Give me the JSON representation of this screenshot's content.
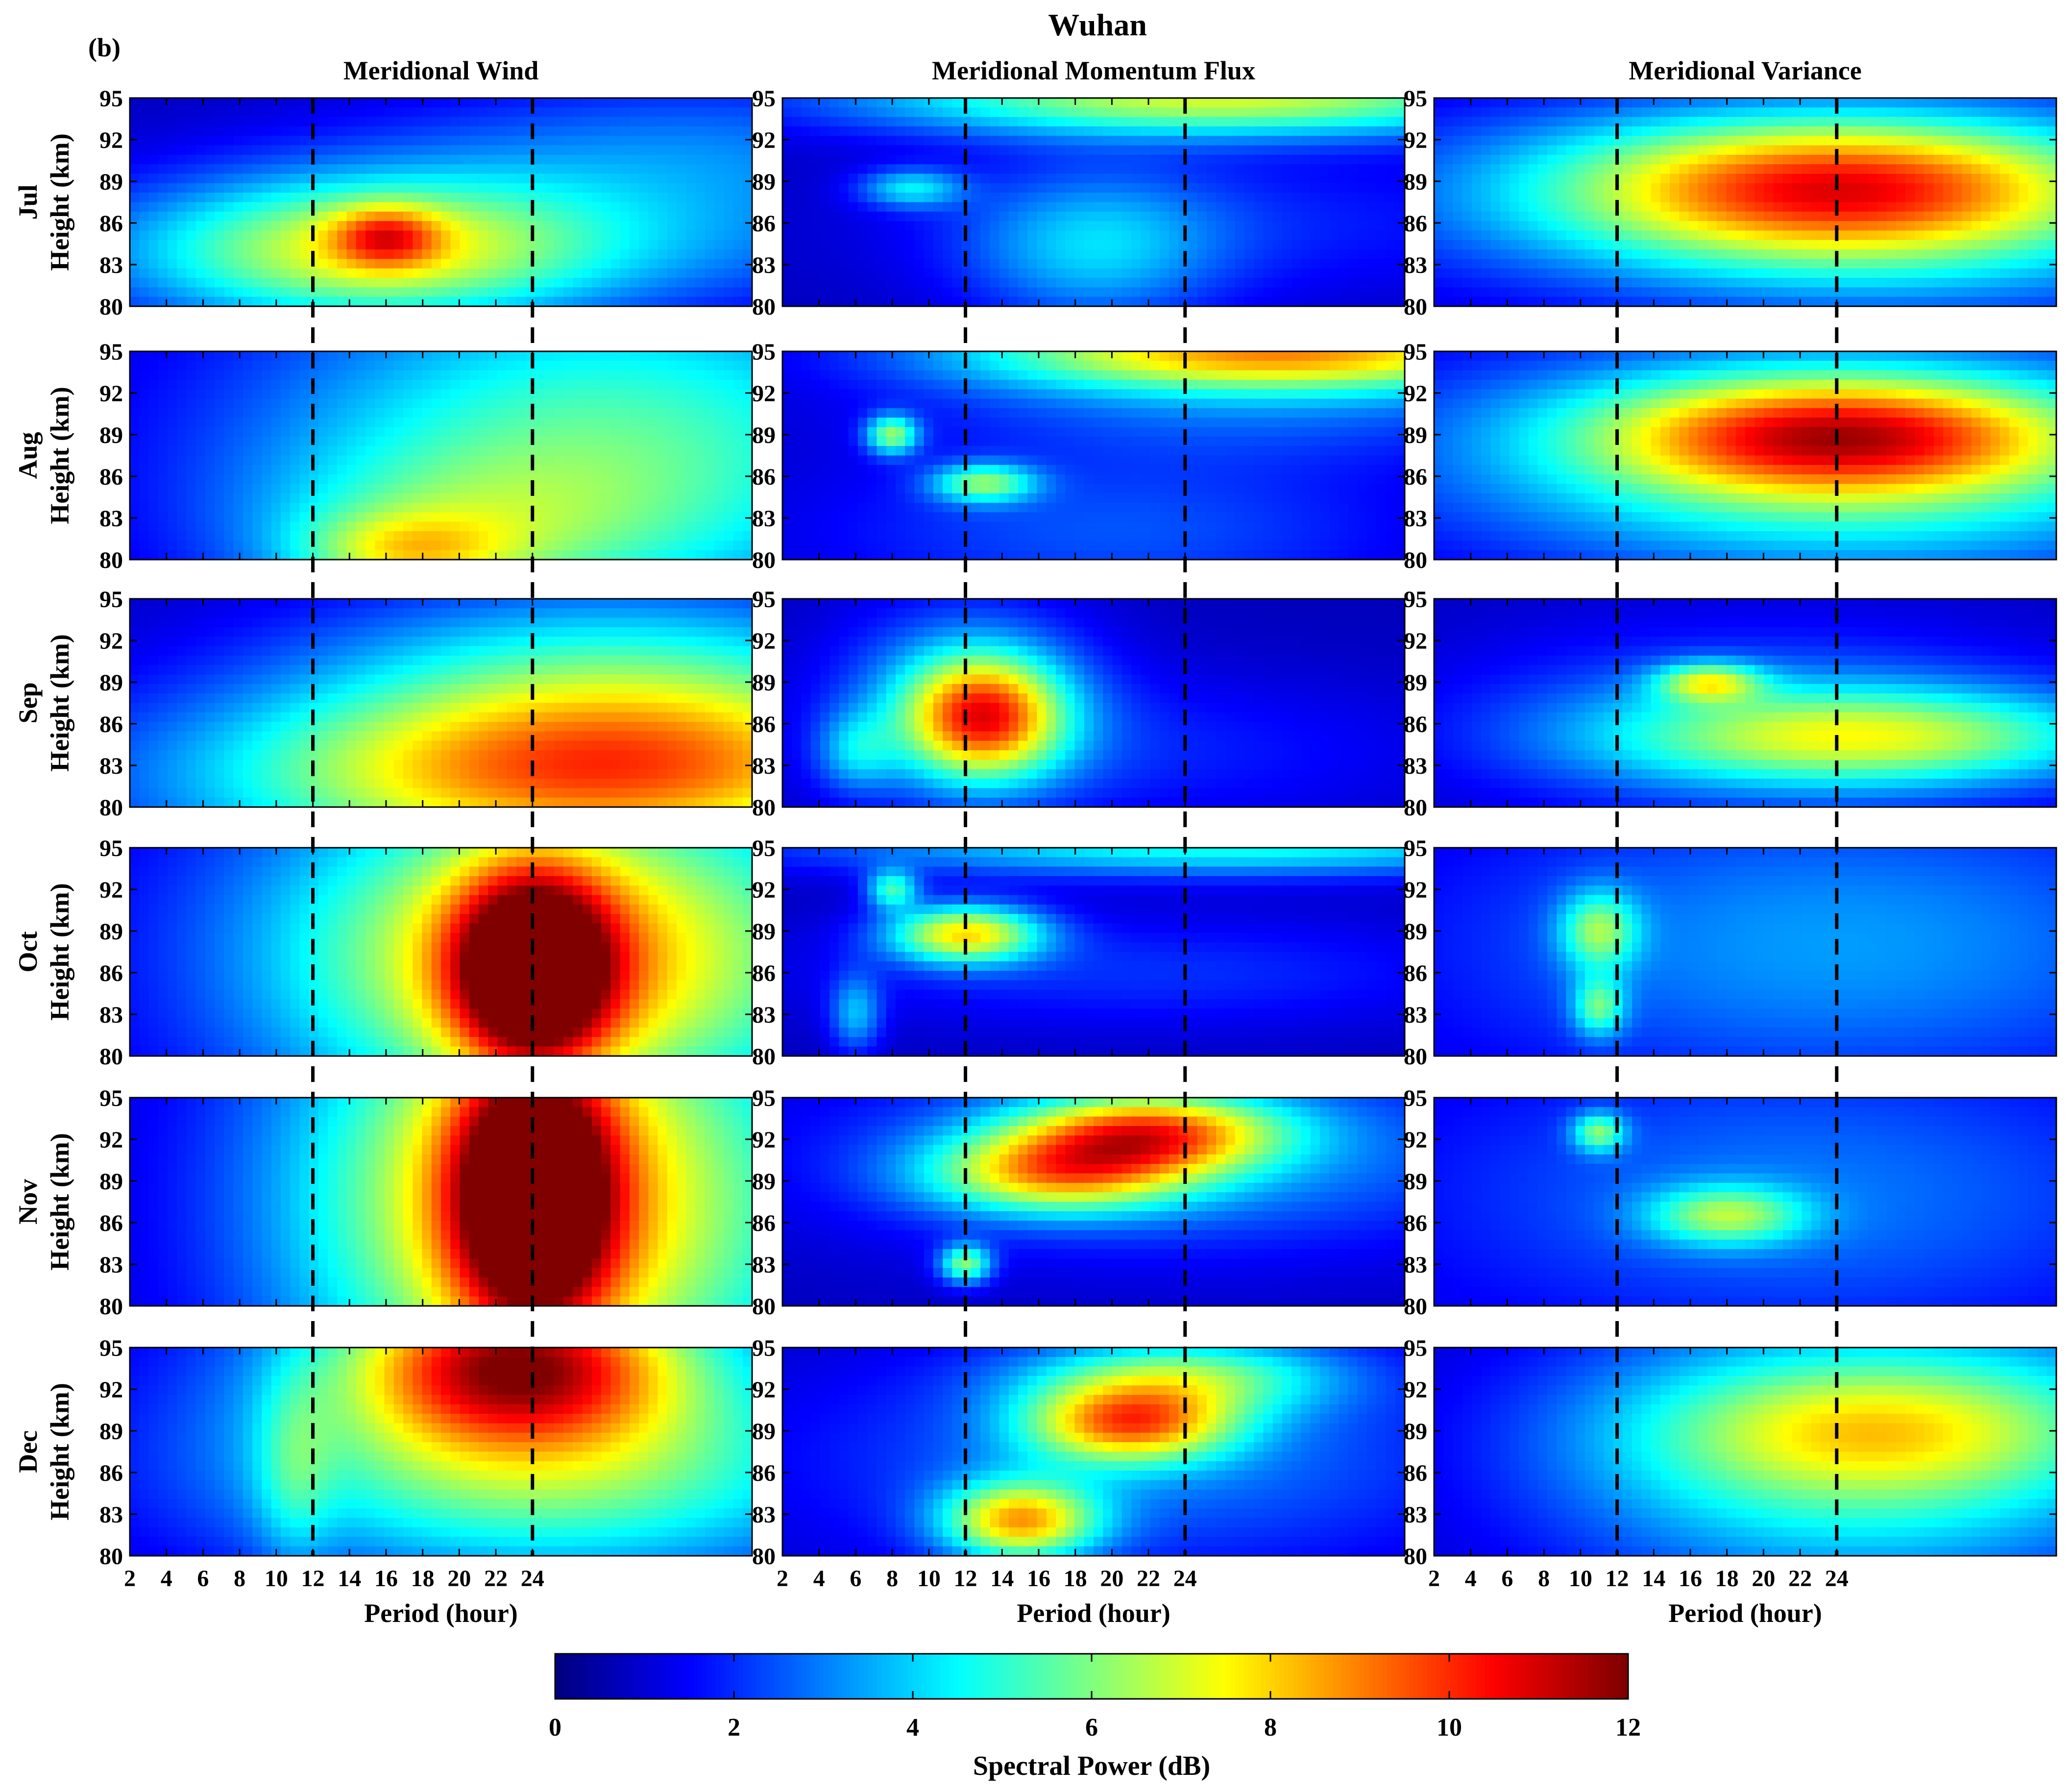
{
  "figure": {
    "title": "Wuhan",
    "panel_letter": "(b)",
    "columns": [
      "Meridional Wind",
      "Meridional Momentum Flux",
      "Meridional Variance"
    ],
    "rows": [
      "Jul",
      "Aug",
      "Sep",
      "Oct",
      "Nov",
      "Dec"
    ],
    "ylabel": "Height (km)",
    "xlabel": "Period (hour)",
    "colorbar": {
      "label": "Spectral Power (dB)",
      "ticks": [
        "0",
        "2",
        "4",
        "6",
        "8",
        "10",
        "12"
      ],
      "colormap": "jet",
      "colors": [
        "#00008f",
        "#0000ff",
        "#0080ff",
        "#00ffff",
        "#80ff80",
        "#ffff00",
        "#ff8000",
        "#ff0000",
        "#800000"
      ]
    }
  },
  "chart_data": {
    "type": "heatmap",
    "title": "Wuhan",
    "xlabel": "Period (hour)",
    "ylabel": "Height (km)",
    "x_ticks": [
      "2",
      "4",
      "6",
      "8",
      "10",
      "12",
      "14",
      "16",
      "18",
      "20",
      "22",
      "24"
    ],
    "y_ticks": [
      "80",
      "83",
      "86",
      "89",
      "92",
      "95"
    ],
    "xlim": [
      2,
      36
    ],
    "ylim": [
      80,
      95
    ],
    "vlim": [
      0,
      12
    ],
    "dashed_lines_x": [
      12,
      24
    ],
    "colorbar_label": "Spectral Power (dB)",
    "panels": [
      {
        "row": "Jul",
        "column": "Meridional Wind",
        "blobs": [
          [
            15,
            84,
            9,
            4,
            2.4
          ],
          [
            16,
            85,
            2,
            1.5,
            1.6
          ],
          [
            25,
            84,
            18,
            3.5,
            0.8
          ],
          [
            33,
            91,
            12,
            4,
            1.0
          ]
        ]
      },
      {
        "row": "Jul",
        "column": "Meridional Momentum Flux",
        "blobs": [
          [
            26,
            95,
            14,
            2,
            2.8
          ],
          [
            9,
            88.5,
            2,
            1,
            1.4
          ],
          [
            19,
            84,
            5,
            4,
            1.2
          ],
          [
            28,
            86,
            15,
            4,
            0.5
          ]
        ]
      },
      {
        "row": "Jul",
        "column": "Meridional Variance",
        "blobs": [
          [
            24,
            88.5,
            10,
            3.5,
            3.0
          ],
          [
            24,
            88,
            18,
            5,
            1.6
          ],
          [
            28,
            82,
            12,
            3,
            0.4
          ]
        ]
      },
      {
        "row": "Aug",
        "column": "Meridional Wind",
        "blobs": [
          [
            28,
            88,
            14,
            9,
            2.2
          ],
          [
            17,
            80.5,
            4,
            2,
            1.4
          ],
          [
            20,
            82,
            8,
            4,
            1.0
          ]
        ]
      },
      {
        "row": "Aug",
        "column": "Meridional Momentum Flux",
        "blobs": [
          [
            29,
            95,
            12,
            2,
            3.4
          ],
          [
            8,
            89,
            1,
            1,
            2.2
          ],
          [
            13,
            85.5,
            2,
            1,
            2.0
          ],
          [
            20,
            82,
            12,
            4,
            0.8
          ],
          [
            28,
            91,
            14,
            3,
            0.8
          ]
        ]
      },
      {
        "row": "Aug",
        "column": "Meridional Variance",
        "blobs": [
          [
            24,
            89,
            9,
            3,
            3.2
          ],
          [
            24,
            88,
            18,
            6,
            1.6
          ],
          [
            25,
            83,
            12,
            4,
            0.6
          ]
        ]
      },
      {
        "row": "Sep",
        "column": "Meridional Wind",
        "blobs": [
          [
            26,
            82,
            15,
            5,
            3.0
          ],
          [
            30,
            85,
            12,
            5,
            1.4
          ],
          [
            28,
            92,
            12,
            4,
            0.9
          ]
        ]
      },
      {
        "row": "Sep",
        "column": "Meridional Momentum Flux",
        "blobs": [
          [
            13,
            86.5,
            3,
            3,
            3.2
          ],
          [
            12,
            88,
            5,
            5,
            1.2
          ],
          [
            6,
            84,
            1.5,
            2,
            1.0
          ],
          [
            22,
            84,
            12,
            4,
            0.5
          ]
        ]
      },
      {
        "row": "Sep",
        "column": "Meridional Variance",
        "blobs": [
          [
            26,
            85,
            10,
            2.5,
            2.2
          ],
          [
            17,
            89,
            2,
            1,
            2.0
          ],
          [
            20,
            86,
            12,
            5,
            1.0
          ]
        ]
      },
      {
        "row": "Oct",
        "column": "Meridional Wind",
        "blobs": [
          [
            24,
            86,
            3,
            5,
            4.0
          ],
          [
            25,
            87,
            10,
            8,
            2.5
          ],
          [
            28,
            88,
            16,
            12,
            1.2
          ]
        ]
      },
      {
        "row": "Oct",
        "column": "Meridional Momentum Flux",
        "blobs": [
          [
            12,
            88.8,
            3,
            1.5,
            3.0
          ],
          [
            8,
            92,
            1,
            1,
            1.8
          ],
          [
            26,
            95,
            16,
            1.5,
            1.8
          ],
          [
            6,
            83,
            1,
            2,
            1.2
          ],
          [
            22,
            86,
            14,
            3,
            0.6
          ]
        ]
      },
      {
        "row": "Oct",
        "column": "Meridional Variance",
        "blobs": [
          [
            11,
            89,
            1.5,
            2,
            1.8
          ],
          [
            11,
            83.5,
            1,
            1.5,
            1.6
          ],
          [
            24,
            88,
            16,
            8,
            1.2
          ]
        ]
      },
      {
        "row": "Nov",
        "column": "Meridional Wind",
        "blobs": [
          [
            24,
            88,
            3,
            7,
            4.0
          ],
          [
            24,
            88,
            9,
            12,
            2.6
          ],
          [
            29,
            87,
            14,
            14,
            1.2
          ]
        ]
      },
      {
        "row": "Nov",
        "column": "Meridional Momentum Flux",
        "blobs": [
          [
            22,
            92.5,
            5,
            2,
            3.0
          ],
          [
            17,
            89.5,
            5,
            2,
            2.6
          ],
          [
            12,
            83,
            1,
            1,
            2.2
          ],
          [
            24,
            91,
            14,
            5,
            1.2
          ]
        ]
      },
      {
        "row": "Nov",
        "column": "Meridional Variance",
        "blobs": [
          [
            18,
            86.5,
            3,
            1.5,
            1.8
          ],
          [
            11,
            92.5,
            1,
            1,
            1.8
          ],
          [
            22,
            88,
            16,
            8,
            1.0
          ]
        ]
      },
      {
        "row": "Dec",
        "column": "Meridional Wind",
        "blobs": [
          [
            23,
            94,
            6,
            4,
            3.2
          ],
          [
            24,
            91,
            12,
            8,
            2.0
          ],
          [
            26,
            85,
            14,
            5,
            1.0
          ],
          [
            11,
            86,
            1.5,
            5,
            0.8
          ]
        ]
      },
      {
        "row": "Dec",
        "column": "Meridional Momentum Flux",
        "blobs": [
          [
            15,
            82.5,
            3,
            2,
            3.0
          ],
          [
            21,
            89.5,
            4,
            2,
            3.0
          ],
          [
            24,
            93,
            6,
            2,
            1.8
          ],
          [
            22,
            87,
            14,
            6,
            1.0
          ]
        ]
      },
      {
        "row": "Dec",
        "column": "Meridional Variance",
        "blobs": [
          [
            25,
            87,
            12,
            7,
            2.0
          ],
          [
            26,
            89,
            8,
            3,
            1.0
          ],
          [
            30,
            91,
            12,
            5,
            0.6
          ]
        ]
      }
    ]
  }
}
